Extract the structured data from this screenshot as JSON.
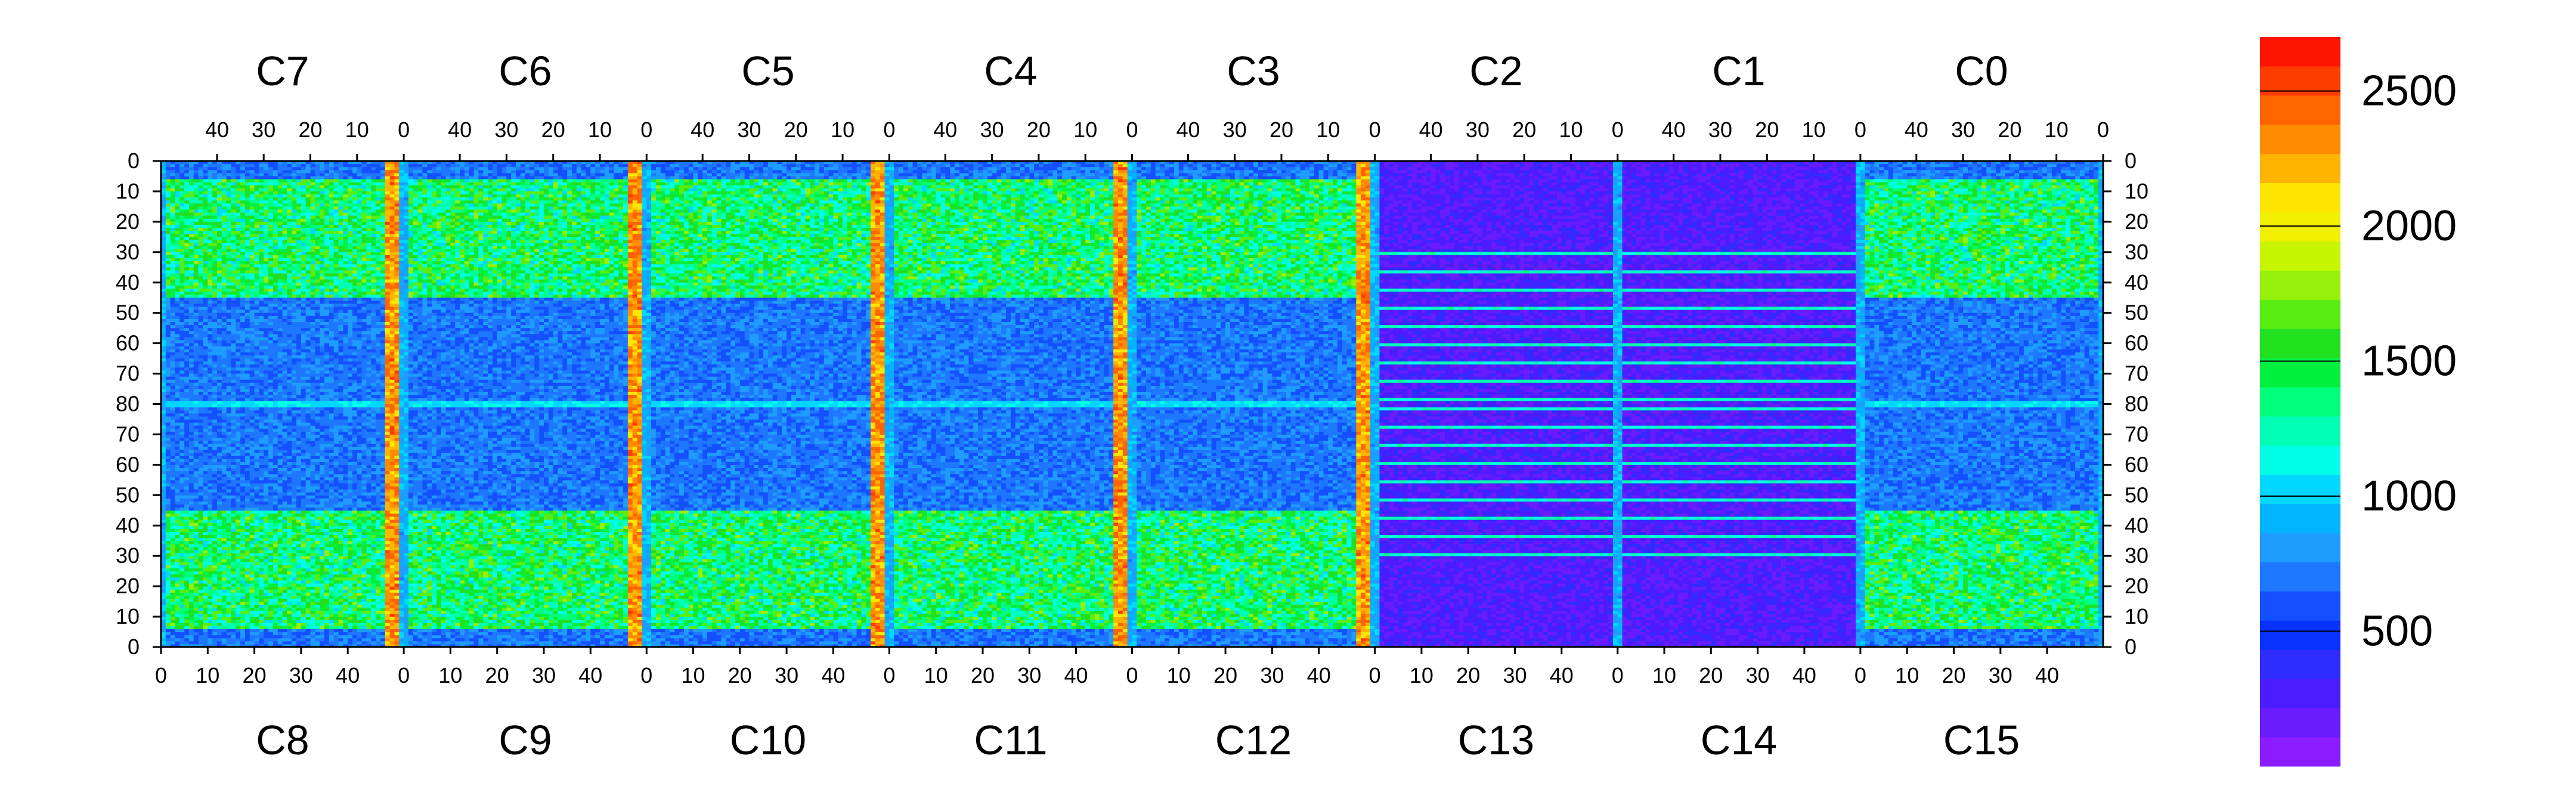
{
  "chart_data": {
    "type": "heatmap",
    "title": "",
    "xlabel": "",
    "ylabel": "",
    "top_chip_labels": [
      "C7",
      "C6",
      "C5",
      "C4",
      "C3",
      "C2",
      "C1",
      "C0"
    ],
    "bottom_chip_labels": [
      "C8",
      "C9",
      "C10",
      "C11",
      "C12",
      "C13",
      "C14",
      "C15"
    ],
    "top_axis_ticks": [
      "40",
      "30",
      "20",
      "10",
      "0"
    ],
    "bottom_axis_ticks": [
      "0",
      "10",
      "20",
      "30",
      "40"
    ],
    "left_axis_ticks": [
      "0",
      "10",
      "20",
      "30",
      "40",
      "50",
      "60",
      "70",
      "80",
      "70",
      "60",
      "50",
      "40",
      "30",
      "20",
      "10",
      "0"
    ],
    "right_axis_ticks": [
      "0",
      "10",
      "20",
      "30",
      "40",
      "50",
      "60",
      "70",
      "80",
      "70",
      "60",
      "50",
      "40",
      "30",
      "20",
      "10",
      "0"
    ],
    "columns_per_chip": 52,
    "rows_per_half": 80,
    "colorbar": {
      "ticks": [
        "500",
        "1000",
        "1500",
        "2000",
        "2500"
      ],
      "tick_values": [
        500,
        1000,
        1500,
        2000,
        2500
      ],
      "range": [
        0,
        2700
      ],
      "colors": [
        "#8a1cff",
        "#6a1cff",
        "#4c1cff",
        "#2e2cff",
        "#0a32ff",
        "#1450ff",
        "#1e78ff",
        "#1e9cff",
        "#00b4ff",
        "#00d8ff",
        "#00ffe6",
        "#00ffb4",
        "#00ff7a",
        "#00f040",
        "#20e020",
        "#5aee10",
        "#96f00a",
        "#c8f500",
        "#f0f000",
        "#ffe600",
        "#ffb400",
        "#ff8c00",
        "#ff6400",
        "#ff3c00",
        "#ff1400"
      ]
    },
    "structure": {
      "uniform_low_value": 250,
      "high_column_value": 2300,
      "high_region_value": 1400,
      "mid_band_value": 700,
      "center_row_value": 1050,
      "ridge_value": 900
    }
  }
}
